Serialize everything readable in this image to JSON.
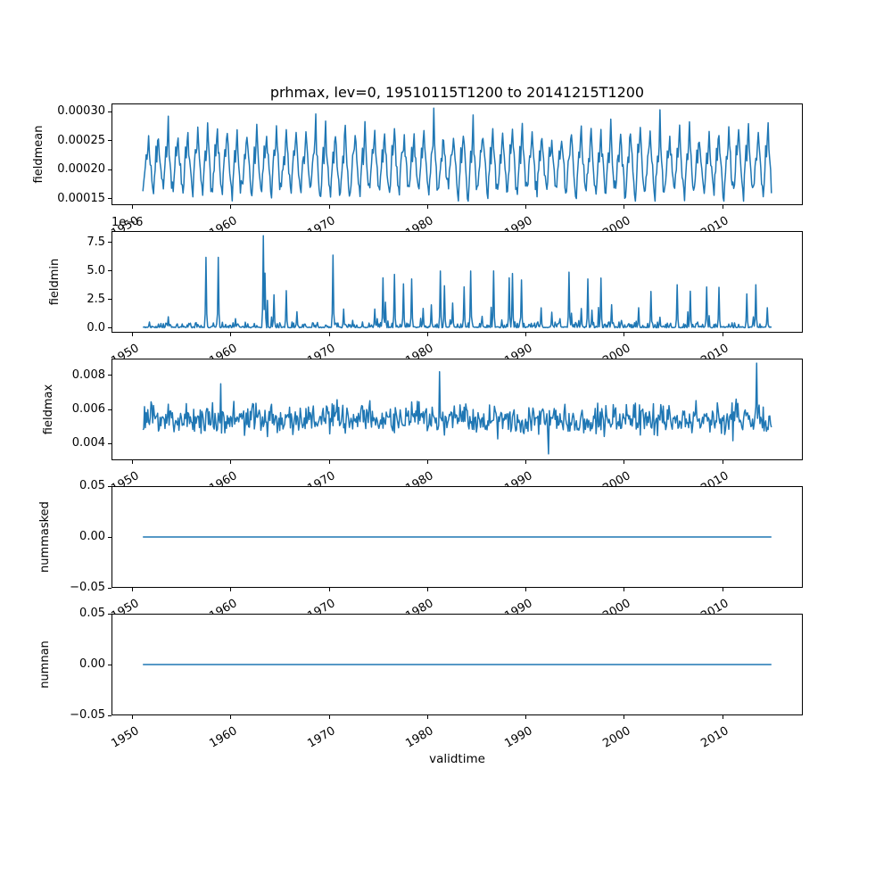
{
  "title": "prhmax, lev=0, 19510115T1200 to 20141215T1200",
  "x_axis": {
    "label": "validtime",
    "lim": [
      1947.85,
      2018.15
    ],
    "ticks": [
      1950,
      1960,
      1970,
      1980,
      1990,
      2000,
      2010
    ],
    "tick_labels": [
      "1950",
      "1960",
      "1970",
      "1980",
      "1990",
      "2000",
      "2010"
    ],
    "data_start": 1951.0417,
    "data_end": 2014.9583,
    "points": 768
  },
  "style": {
    "line_color": "#1f77b4",
    "axis_color": "#000000",
    "text_color": "#000000",
    "background": "#ffffff"
  },
  "chart_data": [
    {
      "type": "line",
      "name": "fieldmean",
      "ylabel": "fieldmean",
      "ylim": [
        0.000139,
        0.000314
      ],
      "yticks": [
        0.00015,
        0.0002,
        0.00025,
        0.0003
      ],
      "ytick_labels": [
        "0.00015",
        "0.00020",
        "0.00025",
        "0.00030"
      ],
      "offset_text": "",
      "series": {
        "kind": "seasonal",
        "seed": 7,
        "base": 0.000212,
        "amp": 5.5e-05,
        "noise": 1.2e-05,
        "month_profile": [
          -0.85,
          -1,
          -0.55,
          -0.15,
          0.35,
          0.15,
          0.6,
          1,
          0.45,
          0.1,
          -0.25,
          -0.7
        ],
        "year_scale": [
          0.82,
          1.12
        ],
        "peak_boost_prob": 0.08,
        "peak_boost": 2.6e-05,
        "clamp": [
          0.000146,
          0.000306
        ]
      },
      "summary": "Monthly field mean 1951-2014; annual cycle oscillating between ~0.00015 and ~0.00028 with occasional peaks up to ~0.000305"
    },
    {
      "type": "line",
      "name": "fieldmin",
      "ylabel": "fieldmin",
      "ylim": [
        -4.1e-07,
        8.51e-06
      ],
      "yticks": [
        0,
        2.5e-06,
        5e-06,
        7.5e-06
      ],
      "ytick_labels": [
        "0.0",
        "2.5",
        "5.0",
        "7.5"
      ],
      "offset_text": "1e−6",
      "series": {
        "kind": "spiky",
        "seed": 11,
        "base_min": 2e-08,
        "base_var": 1e-07,
        "bump_prob": 0.25,
        "bump_max": 4.5e-07,
        "amp_base": 2.5e-07,
        "amp_max": 4.9e-06,
        "amp_pow": 2.6,
        "second_prob": 0.5,
        "overrides": [
          [
            1957.5,
            6.2e-06
          ],
          [
            1958.7,
            6.2e-06
          ],
          [
            1963.3,
            8.1e-06
          ],
          [
            1970.4,
            6.4e-06
          ],
          [
            1975.5,
            4.4e-06
          ],
          [
            1978.4,
            4.3e-06
          ],
          [
            1981.3,
            5e-06
          ],
          [
            1984.4,
            5e-06
          ],
          [
            1988.3,
            4.4e-06
          ],
          [
            1994.4,
            4.9e-06
          ],
          [
            1996.3,
            4.3e-06
          ],
          [
            2005.4,
            3.8e-06
          ],
          [
            2013.4,
            3.8e-06
          ]
        ]
      },
      "summary": "Monthly field minimum; baseline near zero with annual spikes mostly 1e-6 to 5e-6, largest ~8.1e-6 around 1963"
    },
    {
      "type": "line",
      "name": "fieldmax",
      "ylabel": "fieldmax",
      "ylim": [
        0.00303,
        0.00897
      ],
      "yticks": [
        0.004,
        0.006,
        0.008
      ],
      "ytick_labels": [
        "0.004",
        "0.006",
        "0.008"
      ],
      "offset_text": "",
      "series": {
        "kind": "noisy",
        "seed": 23,
        "mean": 0.00545,
        "spread": 0.0009,
        "clamp": [
          0.0034,
          0.0079
        ],
        "overrides": [
          [
            1959.0,
            0.0075
          ],
          [
            1981.2,
            0.0082
          ],
          [
            1992.3,
            0.0034
          ],
          [
            2013.45,
            0.0087
          ]
        ]
      },
      "summary": "Monthly field maximum; noisy band roughly 0.0035-0.008 around mean ~0.0055, absolute max ~0.0087 near 2013"
    },
    {
      "type": "line",
      "name": "nummasked",
      "ylabel": "nummasked",
      "ylim": [
        -0.05,
        0.05
      ],
      "yticks": [
        -0.05,
        0,
        0.05
      ],
      "ytick_labels": [
        "−0.05",
        "0.00",
        "0.05"
      ],
      "offset_text": "",
      "series": {
        "kind": "constant",
        "value": 0
      },
      "summary": "Number of masked points: constant 0 for all times"
    },
    {
      "type": "line",
      "name": "numnan",
      "ylabel": "numnan",
      "ylim": [
        -0.05,
        0.05
      ],
      "yticks": [
        -0.05,
        0,
        0.05
      ],
      "ytick_labels": [
        "−0.05",
        "0.00",
        "0.05"
      ],
      "offset_text": "",
      "series": {
        "kind": "constant",
        "value": 0
      },
      "summary": "Number of NaN points: constant 0 for all times"
    }
  ]
}
